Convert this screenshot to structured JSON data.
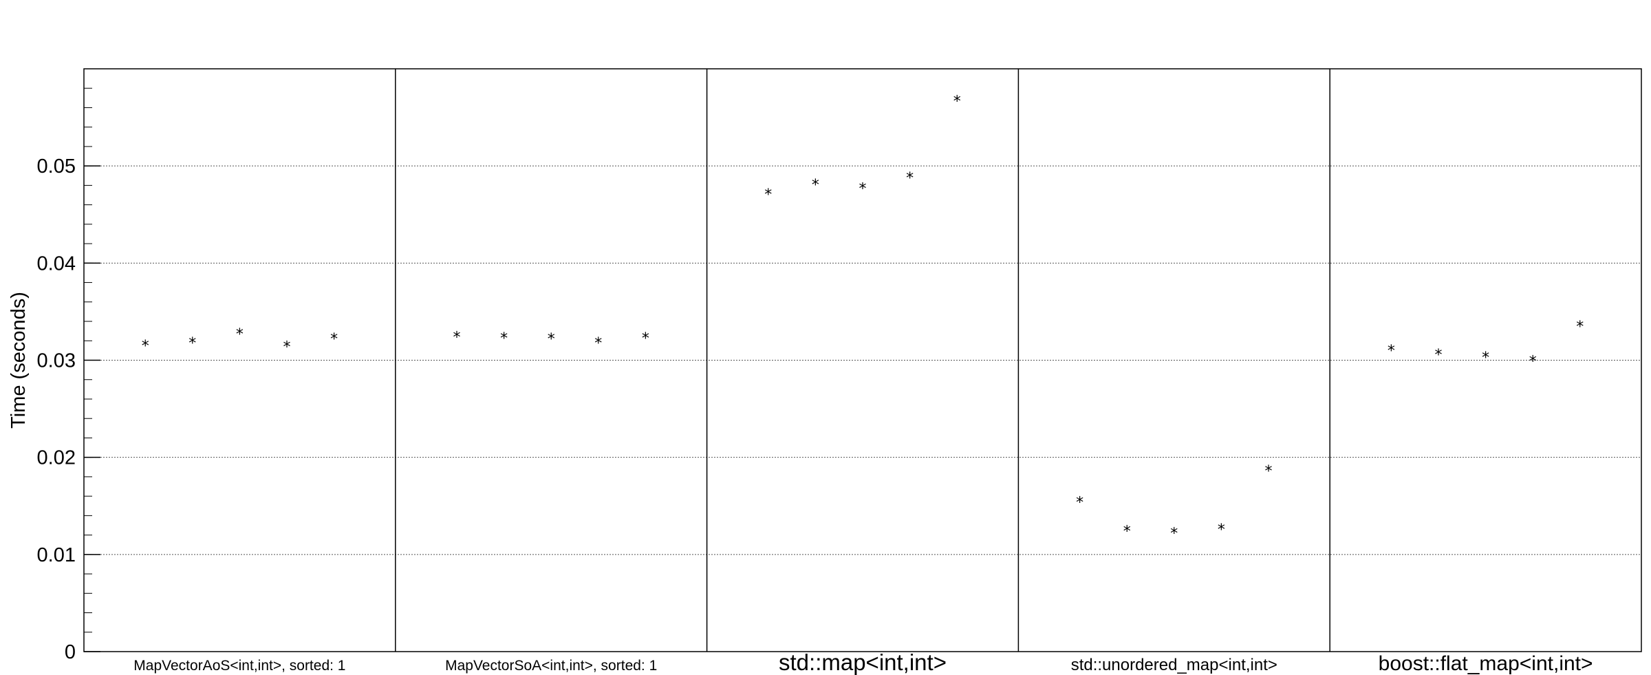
{
  "chart_data": {
    "type": "scatter",
    "title": "",
    "xlabel": "",
    "ylabel": "Time (seconds)",
    "ylim": [
      0,
      0.06
    ],
    "yticks": [
      "0",
      "0.01",
      "0.02",
      "0.03",
      "0.04",
      "0.05"
    ],
    "grid": "horizontal-dotted",
    "marker": "*",
    "categories": [
      "MapVectorAoS<int,int>, sorted: 1",
      "MapVectorSoA<int,int>, sorted: 1",
      "std::map<int,int>",
      "std::unordered_map<int,int>",
      "boost::flat_map<int,int>"
    ],
    "series": [
      {
        "values": [
          0.0318,
          0.0321,
          0.033,
          0.0317,
          0.0325
        ]
      },
      {
        "values": [
          0.0327,
          0.0326,
          0.0325,
          0.0321,
          0.0326
        ]
      },
      {
        "values": [
          0.0474,
          0.0484,
          0.048,
          0.0491,
          0.057
        ]
      },
      {
        "values": [
          0.0157,
          0.0127,
          0.0125,
          0.0129,
          0.0189
        ]
      },
      {
        "values": [
          0.0313,
          0.0309,
          0.0306,
          0.0302,
          0.0338
        ]
      }
    ]
  }
}
